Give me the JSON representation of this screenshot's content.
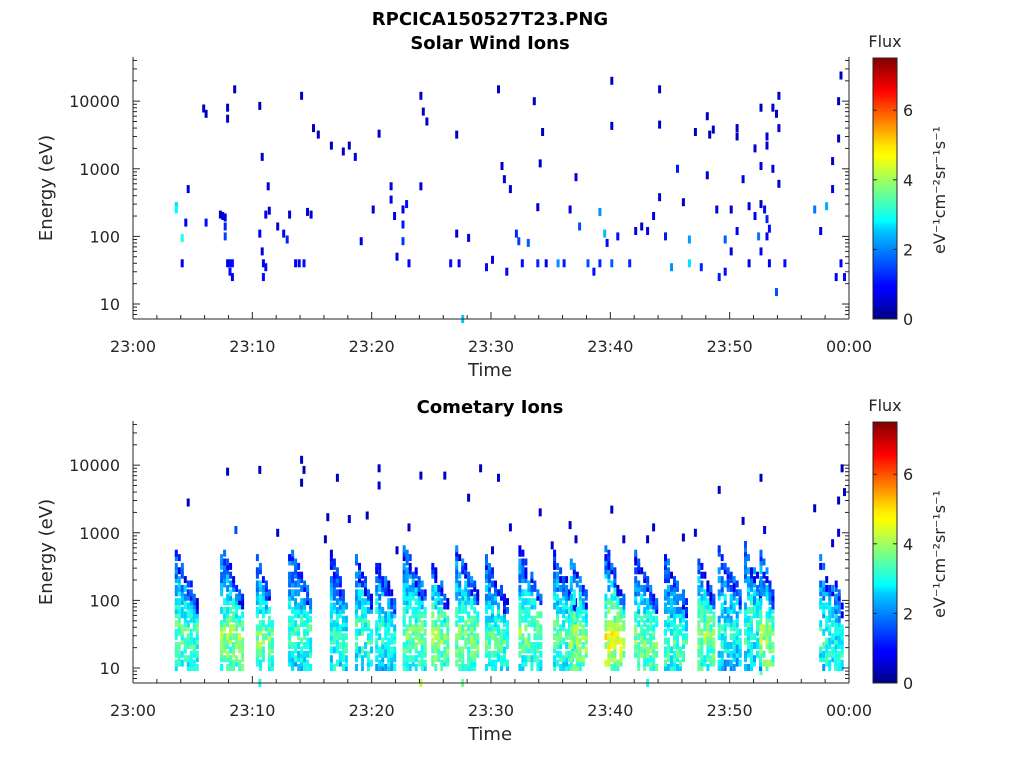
{
  "figure_title": "RPCICA150527T23.PNG",
  "chart_data": [
    {
      "type": "heatmap",
      "title": "Solar Wind Ions",
      "xlabel": "Time",
      "ylabel": "Energy (eV)",
      "x_ticks": [
        "23:00",
        "23:10",
        "23:20",
        "23:30",
        "23:40",
        "23:50",
        "00:00"
      ],
      "x_range_minutes": [
        0,
        60
      ],
      "y_scale": "log",
      "y_ticks": [
        "10",
        "100",
        "1000",
        "10000"
      ],
      "ylim": [
        6,
        45000
      ],
      "colorbar": {
        "label": "Flux",
        "unit": "eV⁻¹cm⁻²sr⁻¹s⁻¹",
        "ticks": [
          "0",
          "2",
          "4",
          "6"
        ],
        "range": [
          0,
          7.5
        ],
        "colormap": "jet"
      },
      "cells": [
        [
          3.5,
          280,
          2.5
        ],
        [
          3.5,
          250,
          2.8
        ],
        [
          4.0,
          95,
          3.0
        ],
        [
          4.0,
          40,
          0.8
        ],
        [
          4.3,
          160,
          0.9
        ],
        [
          4.5,
          500,
          0.6
        ],
        [
          5.8,
          7800,
          0.5
        ],
        [
          6.0,
          6500,
          0.5
        ],
        [
          6.0,
          160,
          1.0
        ],
        [
          7.2,
          210,
          0.5
        ],
        [
          7.4,
          200,
          0.7
        ],
        [
          7.6,
          190,
          0.7
        ],
        [
          7.6,
          140,
          1.2
        ],
        [
          7.6,
          100,
          1.4
        ],
        [
          7.8,
          8000,
          0.5
        ],
        [
          7.8,
          5500,
          0.4
        ],
        [
          7.8,
          40,
          0.7
        ],
        [
          8.0,
          40,
          1.0
        ],
        [
          8.0,
          30,
          1.0
        ],
        [
          8.2,
          40,
          1.0
        ],
        [
          8.2,
          25,
          0.9
        ],
        [
          8.4,
          15000,
          0.5
        ],
        [
          10.5,
          110,
          0.9
        ],
        [
          10.7,
          60,
          0.7
        ],
        [
          10.8,
          40,
          0.8
        ],
        [
          10.8,
          25,
          1.0
        ],
        [
          10.5,
          8500,
          0.5
        ],
        [
          10.7,
          1500,
          0.5
        ],
        [
          11.2,
          550,
          0.6
        ],
        [
          11.0,
          210,
          0.8
        ],
        [
          11.3,
          240,
          0.7
        ],
        [
          11.0,
          35,
          1.0
        ],
        [
          12.0,
          140,
          0.7
        ],
        [
          12.5,
          110,
          0.9
        ],
        [
          12.8,
          90,
          1.2
        ],
        [
          13.0,
          210,
          0.7
        ],
        [
          13.5,
          40,
          0.9
        ],
        [
          13.8,
          40,
          0.8
        ],
        [
          14.2,
          40,
          1.0
        ],
        [
          14.0,
          12000,
          0.5
        ],
        [
          14.5,
          230,
          0.6
        ],
        [
          14.8,
          210,
          0.6
        ],
        [
          15.0,
          4000,
          0.5
        ],
        [
          15.4,
          3200,
          0.5
        ],
        [
          16.5,
          2200,
          0.5
        ],
        [
          17.5,
          1800,
          0.4
        ],
        [
          18.0,
          2200,
          0.5
        ],
        [
          18.5,
          1500,
          0.6
        ],
        [
          19.0,
          85,
          0.7
        ],
        [
          20.0,
          250,
          0.6
        ],
        [
          20.5,
          3300,
          0.5
        ],
        [
          21.5,
          550,
          0.7
        ],
        [
          21.5,
          350,
          0.7
        ],
        [
          21.8,
          200,
          0.8
        ],
        [
          22.0,
          50,
          0.8
        ],
        [
          22.5,
          250,
          0.7
        ],
        [
          22.8,
          300,
          1.0
        ],
        [
          22.5,
          150,
          1.1
        ],
        [
          22.5,
          85,
          1.3
        ],
        [
          23.0,
          40,
          0.9
        ],
        [
          24.0,
          550,
          0.6
        ],
        [
          24.0,
          12000,
          0.5
        ],
        [
          24.2,
          7000,
          0.5
        ],
        [
          24.5,
          5000,
          0.5
        ],
        [
          27.0,
          3200,
          0.5
        ],
        [
          27.0,
          110,
          0.6
        ],
        [
          26.5,
          40,
          1.0
        ],
        [
          27.2,
          40,
          0.8
        ],
        [
          28.0,
          95,
          0.8
        ],
        [
          27.5,
          6,
          2.4
        ],
        [
          29.5,
          35,
          1.0
        ],
        [
          30.0,
          45,
          0.8
        ],
        [
          30.5,
          15000,
          0.5
        ],
        [
          30.8,
          1100,
          0.5
        ],
        [
          31.0,
          700,
          0.6
        ],
        [
          31.5,
          500,
          0.6
        ],
        [
          31.2,
          30,
          0.9
        ],
        [
          32.0,
          110,
          1.2
        ],
        [
          32.2,
          85,
          1.4
        ],
        [
          32.5,
          40,
          1.0
        ],
        [
          33.0,
          80,
          1.6
        ],
        [
          33.5,
          10000,
          0.5
        ],
        [
          34.0,
          1200,
          0.5
        ],
        [
          34.2,
          3500,
          0.5
        ],
        [
          33.8,
          270,
          0.6
        ],
        [
          33.8,
          40,
          1.2
        ],
        [
          34.5,
          40,
          0.8
        ],
        [
          35.5,
          40,
          2.0
        ],
        [
          36.0,
          40,
          1.1
        ],
        [
          36.5,
          250,
          0.7
        ],
        [
          37.0,
          750,
          0.7
        ],
        [
          37.3,
          140,
          1.5
        ],
        [
          38.0,
          40,
          1.5
        ],
        [
          38.5,
          30,
          1.0
        ],
        [
          39.0,
          40,
          1.2
        ],
        [
          39.0,
          230,
          2.0
        ],
        [
          39.4,
          110,
          2.3
        ],
        [
          39.6,
          80,
          1.0
        ],
        [
          40.0,
          4300,
          0.6
        ],
        [
          40.0,
          40,
          1.6
        ],
        [
          40.0,
          20000,
          0.5
        ],
        [
          40.5,
          100,
          1.0
        ],
        [
          41.5,
          40,
          1.2
        ],
        [
          42.0,
          120,
          0.8
        ],
        [
          42.5,
          140,
          0.6
        ],
        [
          43.0,
          120,
          0.8
        ],
        [
          43.5,
          200,
          0.7
        ],
        [
          44.0,
          380,
          0.6
        ],
        [
          44.0,
          4500,
          0.5
        ],
        [
          44.0,
          15000,
          0.5
        ],
        [
          44.5,
          100,
          1.1
        ],
        [
          45.0,
          35,
          2.0
        ],
        [
          45.5,
          1000,
          1.1
        ],
        [
          46.0,
          320,
          0.5
        ],
        [
          46.5,
          90,
          2.1
        ],
        [
          46.5,
          40,
          2.6
        ],
        [
          47.0,
          3500,
          0.5
        ],
        [
          47.5,
          35,
          1.2
        ],
        [
          48.0,
          6000,
          0.6
        ],
        [
          48.0,
          800,
          0.6
        ],
        [
          48.2,
          3200,
          0.5
        ],
        [
          48.5,
          3800,
          0.6
        ],
        [
          48.8,
          250,
          0.7
        ],
        [
          49.0,
          25,
          1.1
        ],
        [
          49.5,
          30,
          1.0
        ],
        [
          49.5,
          90,
          1.6
        ],
        [
          50.0,
          250,
          0.6
        ],
        [
          50.0,
          60,
          0.7
        ],
        [
          50.5,
          3000,
          0.5
        ],
        [
          50.5,
          4000,
          0.5
        ],
        [
          50.5,
          120,
          0.8
        ],
        [
          51.0,
          700,
          0.6
        ],
        [
          51.5,
          280,
          0.7
        ],
        [
          51.5,
          40,
          0.8
        ],
        [
          52.0,
          200,
          0.8
        ],
        [
          52.3,
          100,
          1.8
        ],
        [
          52.5,
          60,
          0.9
        ],
        [
          52.5,
          1100,
          0.7
        ],
        [
          52.5,
          8000,
          0.5
        ],
        [
          52.0,
          2000,
          0.6
        ],
        [
          52.5,
          300,
          0.5
        ],
        [
          53.0,
          3000,
          0.6
        ],
        [
          53.0,
          2200,
          0.6
        ],
        [
          52.8,
          250,
          1.0
        ],
        [
          53.0,
          180,
          1.2
        ],
        [
          53.2,
          130,
          1.0
        ],
        [
          53.0,
          100,
          0.9
        ],
        [
          53.5,
          1000,
          0.6
        ],
        [
          53.2,
          40,
          0.9
        ],
        [
          53.5,
          8000,
          0.5
        ],
        [
          53.8,
          6500,
          0.5
        ],
        [
          54.0,
          4000,
          0.6
        ],
        [
          54.0,
          12000,
          0.5
        ],
        [
          54.0,
          600,
          0.5
        ],
        [
          53.8,
          15,
          1.5
        ],
        [
          54.5,
          40,
          1.0
        ],
        [
          57.0,
          250,
          1.8
        ],
        [
          57.5,
          120,
          0.8
        ],
        [
          58.0,
          280,
          2.2
        ],
        [
          58.5,
          500,
          0.7
        ],
        [
          58.5,
          1300,
          0.6
        ],
        [
          59.0,
          2800,
          0.5
        ],
        [
          59.0,
          10000,
          0.5
        ],
        [
          59.2,
          24000,
          0.5
        ],
        [
          58.8,
          25,
          0.9
        ],
        [
          59.2,
          40,
          0.9
        ],
        [
          59.5,
          25,
          1.0
        ]
      ]
    },
    {
      "type": "heatmap",
      "title": "Cometary Ions",
      "xlabel": "Time",
      "ylabel": "Energy (eV)",
      "x_ticks": [
        "23:00",
        "23:10",
        "23:20",
        "23:30",
        "23:40",
        "23:50",
        "00:00"
      ],
      "x_range_minutes": [
        0,
        60
      ],
      "y_scale": "log",
      "y_ticks": [
        "10",
        "100",
        "1000",
        "10000"
      ],
      "ylim": [
        6,
        45000
      ],
      "colorbar": {
        "label": "Flux",
        "unit": "eV⁻¹cm⁻²sr⁻¹s⁻¹",
        "ticks": [
          "0",
          "2",
          "4",
          "6"
        ],
        "range": [
          0,
          7.5
        ],
        "colormap": "jet"
      },
      "bursts": [
        [
          3.5,
          1.8,
          550,
          35,
          3.8,
          1
        ],
        [
          7.3,
          1.8,
          800,
          30,
          4.3,
          2
        ],
        [
          10.3,
          1.3,
          450,
          30,
          4.2,
          3
        ],
        [
          13.0,
          1.8,
          650,
          40,
          3.6,
          4
        ],
        [
          16.5,
          1.5,
          500,
          30,
          3.4,
          5
        ],
        [
          18.6,
          1.5,
          450,
          40,
          3.6,
          6
        ],
        [
          20.3,
          1.7,
          420,
          35,
          3.4,
          7
        ],
        [
          22.6,
          2.0,
          700,
          35,
          4.0,
          8
        ],
        [
          25.0,
          1.4,
          400,
          30,
          4.3,
          9
        ],
        [
          27.0,
          2.0,
          650,
          35,
          4.2,
          10
        ],
        [
          29.5,
          1.8,
          500,
          30,
          3.8,
          11
        ],
        [
          32.3,
          1.8,
          650,
          35,
          4.1,
          12
        ],
        [
          35.2,
          1.8,
          550,
          35,
          3.8,
          13
        ],
        [
          36.6,
          1.5,
          600,
          30,
          4.4,
          14
        ],
        [
          39.5,
          1.7,
          650,
          30,
          5.0,
          15
        ],
        [
          42.0,
          2.0,
          500,
          25,
          4.0,
          16
        ],
        [
          44.5,
          2.0,
          500,
          25,
          3.6,
          17
        ],
        [
          47.3,
          1.5,
          450,
          35,
          4.3,
          18
        ],
        [
          49.0,
          2.0,
          600,
          40,
          3.2,
          19
        ],
        [
          51.2,
          1.5,
          700,
          45,
          3.6,
          20
        ],
        [
          52.5,
          1.2,
          600,
          30,
          4.4,
          21
        ],
        [
          57.5,
          1.5,
          450,
          30,
          3.4,
          22
        ],
        [
          58.8,
          0.7,
          300,
          20,
          3.2,
          23
        ]
      ],
      "scatter": [
        [
          4.5,
          2800,
          0.5
        ],
        [
          7.8,
          8000,
          0.5
        ],
        [
          8.5,
          1100,
          1.5
        ],
        [
          10.5,
          8500,
          0.5
        ],
        [
          12.0,
          1000,
          0.6
        ],
        [
          14.0,
          12000,
          0.5
        ],
        [
          14.0,
          5500,
          0.5
        ],
        [
          14.2,
          8500,
          0.5
        ],
        [
          16.0,
          800,
          0.5
        ],
        [
          16.2,
          1700,
          0.5
        ],
        [
          17.0,
          6500,
          0.5
        ],
        [
          18.0,
          1600,
          0.6
        ],
        [
          19.5,
          1800,
          0.5
        ],
        [
          20.5,
          9000,
          0.5
        ],
        [
          20.5,
          5000,
          0.6
        ],
        [
          22.0,
          550,
          0.5
        ],
        [
          23.0,
          1200,
          0.5
        ],
        [
          24.0,
          7000,
          0.5
        ],
        [
          26.0,
          7000,
          0.5
        ],
        [
          28.0,
          3300,
          0.5
        ],
        [
          29.0,
          9000,
          0.5
        ],
        [
          30.0,
          550,
          0.5
        ],
        [
          30.5,
          6500,
          0.6
        ],
        [
          31.5,
          1200,
          0.6
        ],
        [
          34.0,
          2000,
          0.5
        ],
        [
          35.0,
          650,
          0.6
        ],
        [
          36.5,
          1300,
          0.5
        ],
        [
          37.0,
          800,
          0.6
        ],
        [
          40.0,
          2200,
          0.5
        ],
        [
          41.0,
          800,
          0.6
        ],
        [
          43.0,
          800,
          0.5
        ],
        [
          43.5,
          1200,
          0.6
        ],
        [
          46.0,
          850,
          0.5
        ],
        [
          47.0,
          1000,
          0.6
        ],
        [
          49.0,
          4300,
          0.5
        ],
        [
          51.0,
          1500,
          0.5
        ],
        [
          52.5,
          6500,
          0.5
        ],
        [
          52.8,
          1100,
          0.8
        ],
        [
          57.0,
          2300,
          0.5
        ],
        [
          58.5,
          700,
          0.6
        ],
        [
          59.0,
          3000,
          0.5
        ],
        [
          59.3,
          9000,
          0.5
        ],
        [
          59.5,
          4000,
          0.5
        ],
        [
          59.0,
          1000,
          0.7
        ],
        [
          24.0,
          6,
          4.2
        ],
        [
          27.5,
          6,
          3.6
        ],
        [
          43.0,
          6,
          3.0
        ],
        [
          52.5,
          9,
          3.5
        ],
        [
          10.5,
          6,
          3.0
        ]
      ]
    }
  ]
}
